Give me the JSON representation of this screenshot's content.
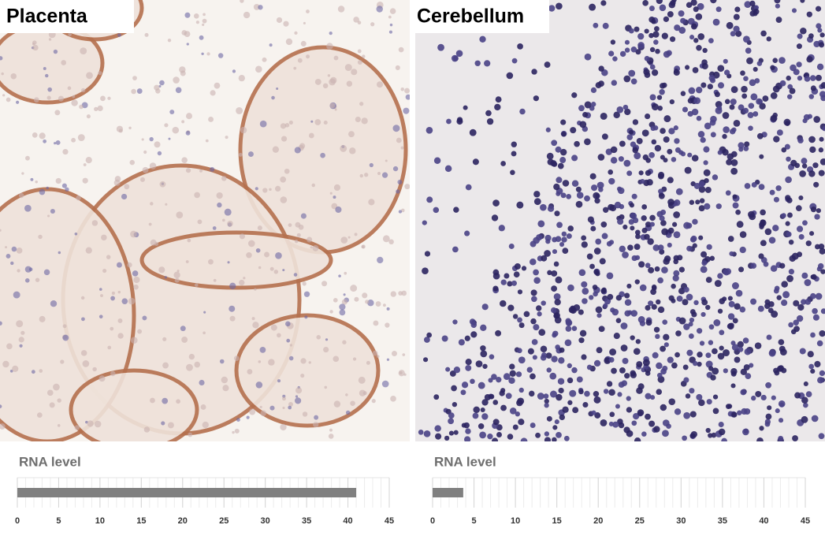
{
  "chart_data": [
    {
      "type": "bar",
      "panel_title": "Placenta",
      "title": "RNA level",
      "values": [
        41
      ],
      "color": "#808080",
      "xlim": [
        0,
        45
      ],
      "xticks": [
        0,
        5,
        10,
        15,
        20,
        25,
        30,
        35,
        40,
        45
      ],
      "grid": true
    },
    {
      "type": "bar",
      "panel_title": "Cerebellum",
      "title": "RNA level",
      "values": [
        3.7
      ],
      "color": "#808080",
      "xlim": [
        0,
        45
      ],
      "xticks": [
        0,
        5,
        10,
        15,
        20,
        25,
        30,
        35,
        40,
        45
      ],
      "grid": true
    }
  ]
}
